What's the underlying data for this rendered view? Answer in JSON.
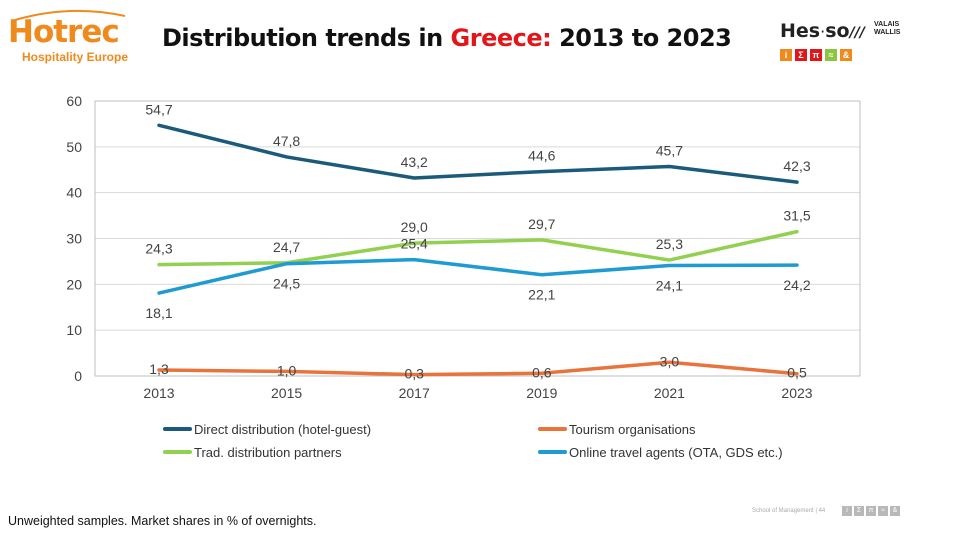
{
  "header": {
    "logo_left": {
      "name": "Hotrec",
      "tagline": "Hospitality Europe"
    },
    "title_prefix": "Distribution trends in ",
    "title_country": "Greece:",
    "title_suffix": " 2013 to 2023",
    "logo_right": {
      "name": "Hes",
      "dot": "·",
      "suffix": "so",
      "sub1": "VALAIS",
      "sub2": "WALLIS",
      "boxes": [
        "i",
        "Σ",
        "π",
        "≈",
        "&"
      ],
      "box_colors": [
        "#f08a1c",
        "#e2151b",
        "#e2151b",
        "#8cc63f",
        "#f08a1c"
      ]
    }
  },
  "chart_data": {
    "type": "line",
    "categories": [
      "2013",
      "2015",
      "2017",
      "2019",
      "2021",
      "2023"
    ],
    "ylim": [
      0,
      60
    ],
    "yticks": [
      "0",
      "10",
      "20",
      "30",
      "40",
      "50",
      "60"
    ],
    "grid": true,
    "legend_position": "bottom",
    "series": [
      {
        "name": "Direct distribution (hotel-guest)",
        "color": "#1b5a7a",
        "values": [
          54.7,
          47.8,
          43.2,
          44.6,
          45.7,
          42.3
        ],
        "labels": [
          "54,7",
          "47,8",
          "43,2",
          "44,6",
          "45,7",
          "42,3"
        ]
      },
      {
        "name": "Tourism organisations",
        "color": "#e8743b",
        "values": [
          1.3,
          1.0,
          0.3,
          0.6,
          3.0,
          0.5
        ],
        "labels": [
          "1,3",
          "1,0",
          "0,3",
          "0,6",
          "3,0",
          "0,5"
        ]
      },
      {
        "name": "Trad. distribution partners",
        "color": "#92d050",
        "values": [
          24.3,
          24.7,
          29.0,
          29.7,
          25.3,
          31.5
        ],
        "labels": [
          "24,3",
          "24,7",
          "29,0",
          "29,7",
          "25,3",
          "31,5"
        ]
      },
      {
        "name": "Online travel agents (OTA, GDS etc.)",
        "color": "#1f9bd1",
        "values": [
          18.1,
          24.5,
          25.4,
          22.1,
          24.1,
          24.2
        ],
        "labels": [
          "18,1",
          "24,5",
          "25,4",
          "22,1",
          "24,1",
          "24,2"
        ]
      }
    ]
  },
  "footnote": "Unweighted samples. Market shares in % of overnights.",
  "footer": {
    "text": "School of Management | 44",
    "boxes": [
      "i",
      "Σ",
      "π",
      "≈",
      "&"
    ]
  }
}
